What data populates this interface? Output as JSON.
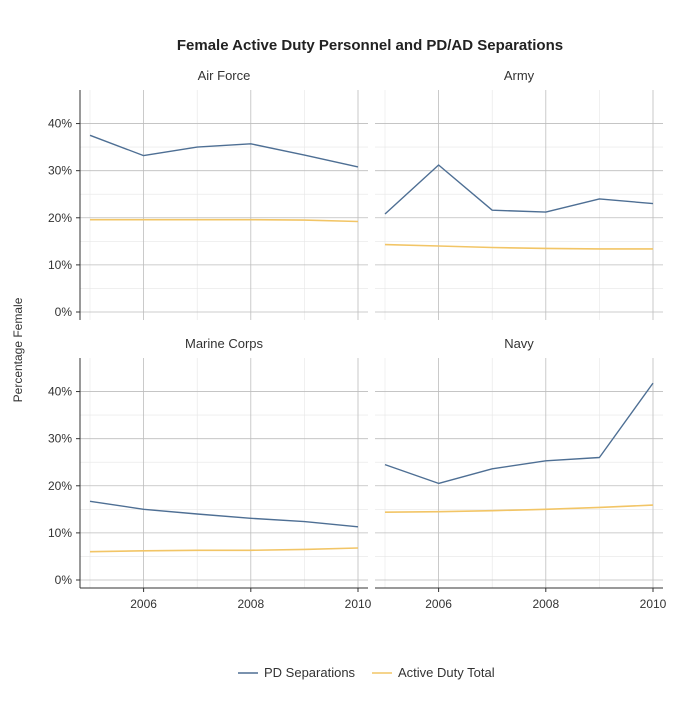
{
  "chart_data": {
    "type": "line",
    "title": "Female Active Duty Personnel and PD/AD Separations",
    "ylabel": "Percentage Female",
    "xlabel": "",
    "x": [
      2005,
      2006,
      2007,
      2008,
      2009,
      2010
    ],
    "xticks": [
      "2006",
      "2008",
      "2010"
    ],
    "xlim": [
      2005,
      2010
    ],
    "ylim": [
      0,
      45
    ],
    "yticks": [
      "0%",
      "10%",
      "20%",
      "30%",
      "40%"
    ],
    "grid": true,
    "legend_position": "bottom",
    "series_names": [
      "PD Separations",
      "Active Duty Total"
    ],
    "series_colors": [
      "#4e6f94",
      "#f2c566"
    ],
    "panels": [
      {
        "name": "Air Force",
        "series": [
          {
            "name": "PD Separations",
            "values": [
              37.5,
              33.2,
              35.0,
              35.7,
              33.3,
              30.8
            ]
          },
          {
            "name": "Active Duty Total",
            "values": [
              19.6,
              19.6,
              19.6,
              19.6,
              19.5,
              19.2
            ]
          }
        ]
      },
      {
        "name": "Army",
        "series": [
          {
            "name": "PD Separations",
            "values": [
              20.8,
              31.2,
              21.6,
              21.2,
              24.0,
              23.0
            ]
          },
          {
            "name": "Active Duty Total",
            "values": [
              14.3,
              14.0,
              13.7,
              13.5,
              13.4,
              13.4
            ]
          }
        ]
      },
      {
        "name": "Marine Corps",
        "series": [
          {
            "name": "PD Separations",
            "values": [
              16.7,
              15.0,
              14.0,
              13.1,
              12.4,
              11.3
            ]
          },
          {
            "name": "Active Duty Total",
            "values": [
              6.0,
              6.2,
              6.3,
              6.3,
              6.5,
              6.8
            ]
          }
        ]
      },
      {
        "name": "Navy",
        "series": [
          {
            "name": "PD Separations",
            "values": [
              24.5,
              20.5,
              23.6,
              25.3,
              26.0,
              41.8
            ]
          },
          {
            "name": "Active Duty Total",
            "values": [
              14.4,
              14.5,
              14.7,
              15.0,
              15.4,
              15.9
            ]
          }
        ]
      }
    ]
  }
}
